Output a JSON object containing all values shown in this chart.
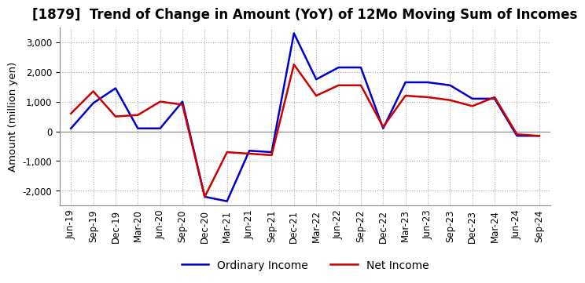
{
  "title": "[1879]  Trend of Change in Amount (YoY) of 12Mo Moving Sum of Incomes",
  "ylabel": "Amount (million yen)",
  "ylim": [
    -2500,
    3500
  ],
  "yticks": [
    -2000,
    -1000,
    0,
    1000,
    2000,
    3000
  ],
  "x_labels": [
    "Jun-19",
    "Sep-19",
    "Dec-19",
    "Mar-20",
    "Jun-20",
    "Sep-20",
    "Dec-20",
    "Mar-21",
    "Jun-21",
    "Sep-21",
    "Dec-21",
    "Mar-22",
    "Jun-22",
    "Sep-22",
    "Dec-22",
    "Mar-23",
    "Jun-23",
    "Sep-23",
    "Dec-23",
    "Mar-24",
    "Jun-24",
    "Sep-24"
  ],
  "ordinary_income": [
    100,
    950,
    1450,
    100,
    100,
    1000,
    -2200,
    -2350,
    -650,
    -700,
    3300,
    1750,
    2150,
    2150,
    100,
    1650,
    1650,
    1550,
    1100,
    1100,
    -150,
    -150
  ],
  "net_income": [
    600,
    1350,
    500,
    550,
    1000,
    900,
    -2200,
    -700,
    -750,
    -800,
    2250,
    1200,
    1550,
    1550,
    150,
    1200,
    1150,
    1050,
    850,
    1150,
    -100,
    -150
  ],
  "ordinary_color": "#0000cc",
  "net_color": "#cc0000",
  "grid_color": "#aaaaaa",
  "background_color": "#ffffff",
  "title_fontsize": 12,
  "legend_fontsize": 10,
  "tick_fontsize": 8.5
}
